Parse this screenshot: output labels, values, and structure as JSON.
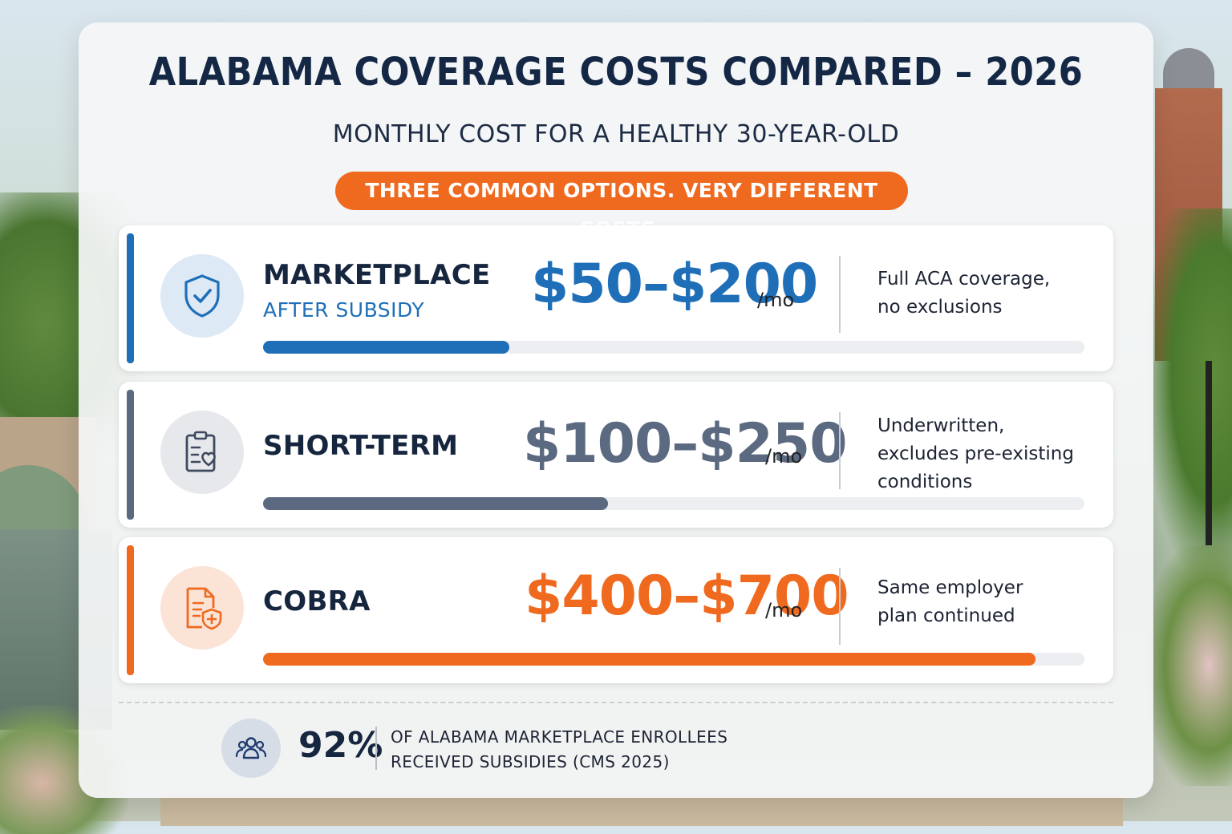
{
  "title": "ALABAMA COVERAGE COSTS COMPARED – 2026",
  "subtitle": "MONTHLY COST FOR A HEALTHY 30-YEAR-OLD",
  "tagline": "THREE COMMON OPTIONS. VERY DIFFERENT COSTS.",
  "colors": {
    "blue": "#1f6fb8",
    "slate": "#5b6a80",
    "orange": "#ef6a1f",
    "navy": "#142845"
  },
  "options": [
    {
      "name": "MARKETPLACE",
      "sub": "AFTER SUBSIDY",
      "price": "$50–$200",
      "unit": "/mo",
      "desc_line1": "Full ACA coverage,",
      "desc_line2": "no exclusions",
      "desc_line3": "",
      "icon": "shield-check-icon",
      "bar_fill": 0.3
    },
    {
      "name": "SHORT-TERM",
      "sub": "",
      "price": "$100–$250",
      "unit": "/mo",
      "desc_line1": "Underwritten,",
      "desc_line2": "excludes pre-existing",
      "desc_line3": "conditions",
      "icon": "clipboard-heart-icon",
      "bar_fill": 0.42
    },
    {
      "name": "COBRA",
      "sub": "",
      "price": "$400–$700",
      "unit": "/mo",
      "desc_line1": "Same employer",
      "desc_line2": "plan continued",
      "desc_line3": "",
      "icon": "document-shield-icon",
      "bar_fill": 0.94
    }
  ],
  "footer": {
    "stat": "92%",
    "line1": "OF ALABAMA MARKETPLACE ENROLLEES",
    "line2": "RECEIVED SUBSIDIES (CMS 2025)",
    "icon": "people-group-icon"
  }
}
